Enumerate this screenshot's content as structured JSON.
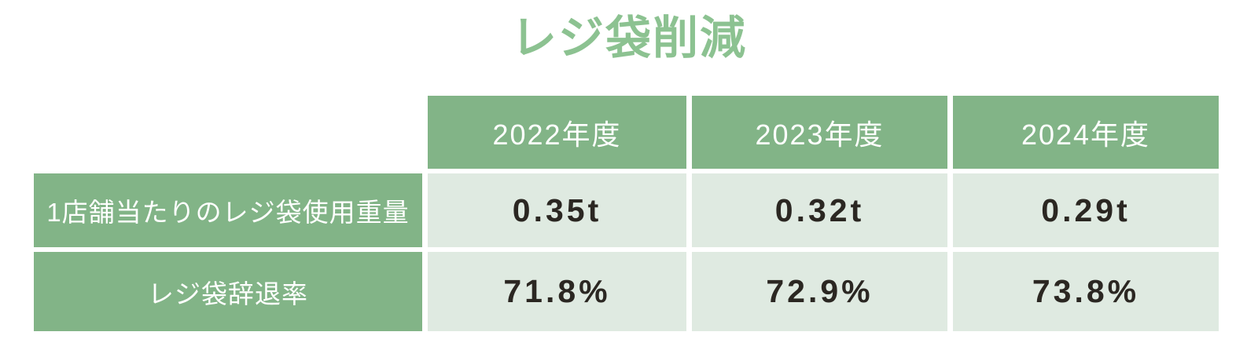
{
  "title": {
    "text": "レジ袋削減"
  },
  "colors": {
    "page_bg": "#FFFFFF",
    "title_text": "#8CC291",
    "header_bg": "#82B487",
    "header_text": "#FFFFFF",
    "cell_bg": "#DFEAE1",
    "value_text": "#2B2722"
  },
  "table": {
    "column_headers": [
      "2022年度",
      "2023年度",
      "2024年度"
    ],
    "rows": [
      {
        "label": "1店舗当たりのレジ袋使用重量",
        "values": [
          "0.35t",
          "0.32t",
          "0.29t"
        ]
      },
      {
        "label": "レジ袋辞退率",
        "values": [
          "71.8%",
          "72.9%",
          "73.8%"
        ]
      }
    ]
  },
  "chart_data": {
    "type": "table",
    "title": "レジ袋削減",
    "categories": [
      "2022年度",
      "2023年度",
      "2024年度"
    ],
    "series": [
      {
        "name": "1店舗当たりのレジ袋使用重量",
        "unit": "t",
        "values": [
          0.35,
          0.32,
          0.29
        ]
      },
      {
        "name": "レジ袋辞退率",
        "unit": "%",
        "values": [
          71.8,
          72.9,
          73.8
        ]
      }
    ],
    "layout": {
      "header_position": "top-and-left",
      "grid": "white-gaps-between-cells"
    }
  }
}
